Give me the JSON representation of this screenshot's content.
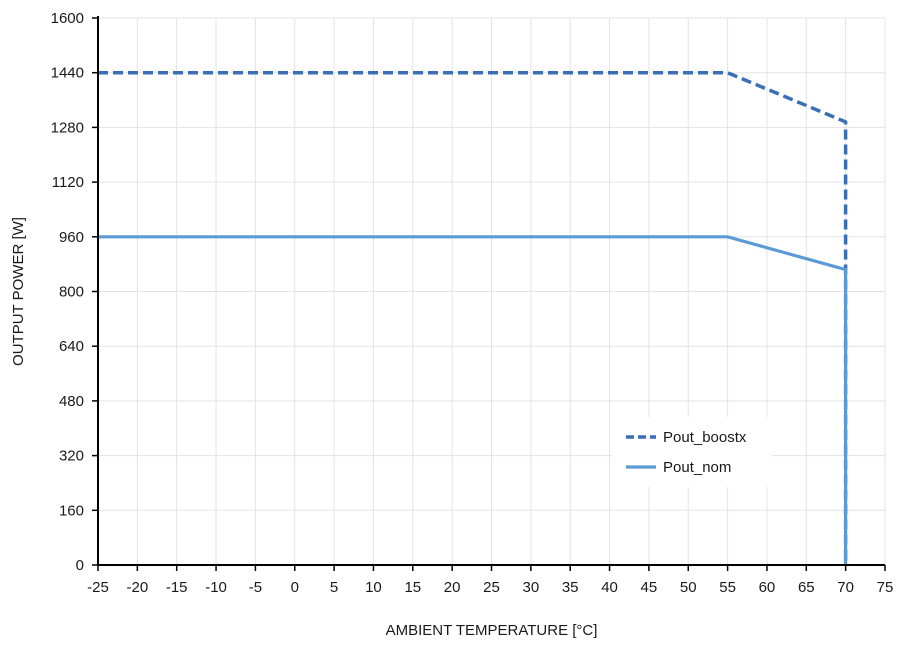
{
  "chart_data": {
    "type": "line",
    "title": "",
    "xlabel": "AMBIENT TEMPERATURE [°C]",
    "ylabel": "OUTPUT POWER [W]",
    "xlim": [
      -25,
      75
    ],
    "ylim": [
      0,
      1600
    ],
    "x_ticks": [
      -25,
      -20,
      -15,
      -10,
      -5,
      0,
      5,
      10,
      15,
      20,
      25,
      30,
      35,
      40,
      45,
      50,
      55,
      60,
      65,
      70,
      75
    ],
    "y_ticks": [
      0,
      160,
      320,
      480,
      640,
      800,
      960,
      1120,
      1280,
      1440,
      1600
    ],
    "grid": true,
    "legend_position": "bottom-right",
    "series": [
      {
        "name": "Pout_boostx",
        "style": "dashed",
        "color": "#3a6fb8",
        "points": [
          [
            -25,
            1440
          ],
          [
            55,
            1440
          ],
          [
            70,
            1296
          ],
          [
            70,
            0
          ]
        ]
      },
      {
        "name": "Pout_nom",
        "style": "solid",
        "color": "#5b9bd5",
        "points": [
          [
            -25,
            960
          ],
          [
            55,
            960
          ],
          [
            70,
            864
          ],
          [
            70,
            0
          ]
        ]
      }
    ]
  }
}
